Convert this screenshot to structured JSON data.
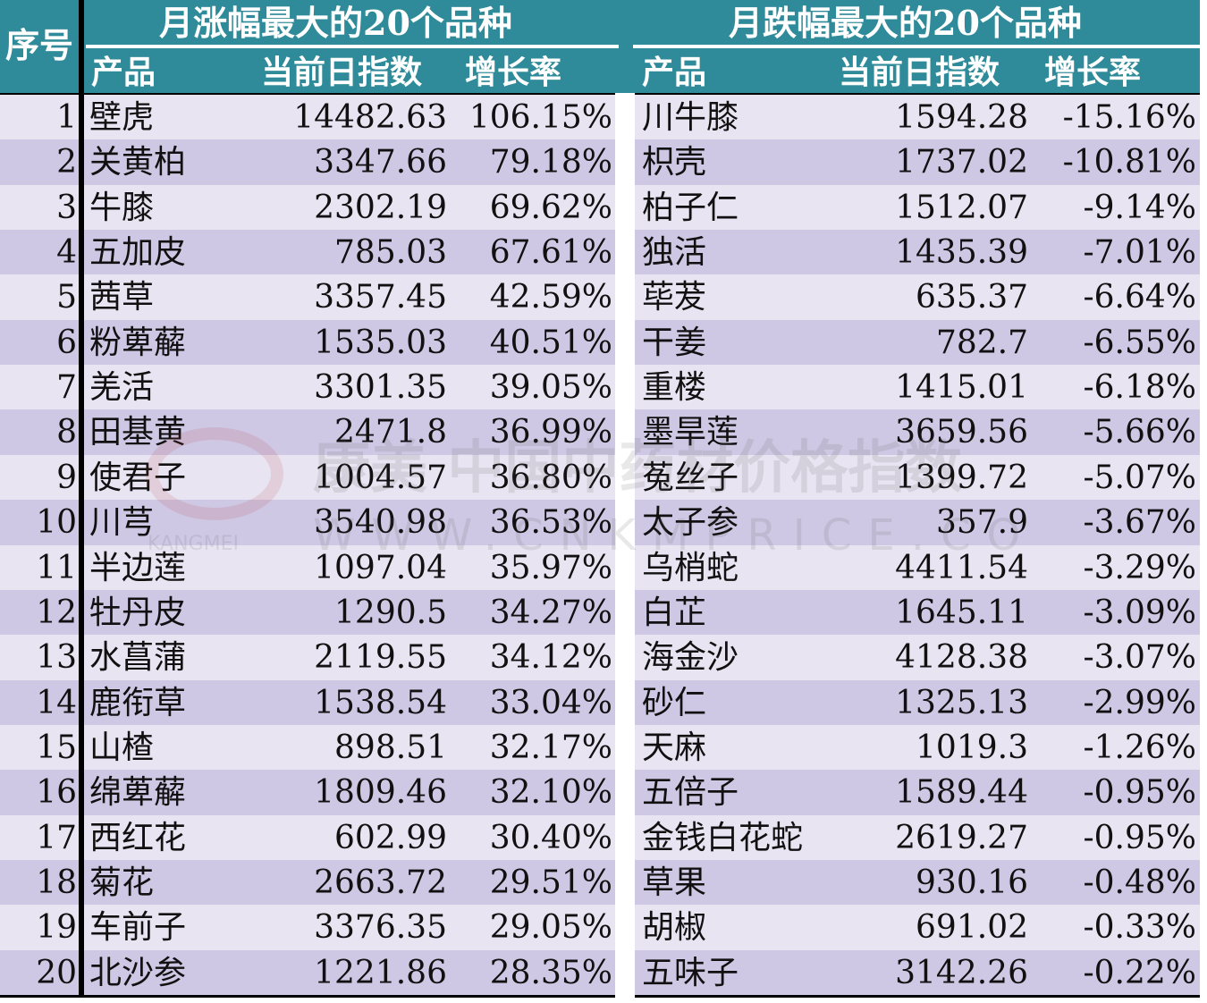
{
  "header": {
    "index_label": "序号",
    "left_title": "月涨幅最大的20个品种",
    "right_title": "月跌幅最大的20个品种",
    "left_columns": [
      "产品",
      "当前日指数",
      "增长率"
    ],
    "right_columns": [
      "产品",
      "当前日指数",
      "增长率"
    ]
  },
  "colors": {
    "header_bg": "#2f8b99",
    "row_light": "#e8e4f2",
    "row_dark": "#cfc8e4",
    "separator": "#000000"
  },
  "rows": [
    {
      "idx": "1",
      "left": {
        "name": "壁虎",
        "value": "14482.63",
        "rate": "106.15%"
      },
      "right": {
        "name": "川牛膝",
        "value": "1594.28",
        "rate": "-15.16%"
      }
    },
    {
      "idx": "2",
      "left": {
        "name": "关黄柏",
        "value": "3347.66",
        "rate": "79.18%"
      },
      "right": {
        "name": "枳壳",
        "value": "1737.02",
        "rate": "-10.81%"
      }
    },
    {
      "idx": "3",
      "left": {
        "name": "牛膝",
        "value": "2302.19",
        "rate": "69.62%"
      },
      "right": {
        "name": "柏子仁",
        "value": "1512.07",
        "rate": "-9.14%"
      }
    },
    {
      "idx": "4",
      "left": {
        "name": "五加皮",
        "value": "785.03",
        "rate": "67.61%"
      },
      "right": {
        "name": "独活",
        "value": "1435.39",
        "rate": "-7.01%"
      }
    },
    {
      "idx": "5",
      "left": {
        "name": "茜草",
        "value": "3357.45",
        "rate": "42.59%"
      },
      "right": {
        "name": "荜茇",
        "value": "635.37",
        "rate": "-6.64%"
      }
    },
    {
      "idx": "6",
      "left": {
        "name": "粉萆薢",
        "value": "1535.03",
        "rate": "40.51%"
      },
      "right": {
        "name": "干姜",
        "value": "782.7",
        "rate": "-6.55%"
      }
    },
    {
      "idx": "7",
      "left": {
        "name": "羌活",
        "value": "3301.35",
        "rate": "39.05%"
      },
      "right": {
        "name": "重楼",
        "value": "1415.01",
        "rate": "-6.18%"
      }
    },
    {
      "idx": "8",
      "left": {
        "name": "田基黄",
        "value": "2471.8",
        "rate": "36.99%"
      },
      "right": {
        "name": "墨旱莲",
        "value": "3659.56",
        "rate": "-5.66%"
      }
    },
    {
      "idx": "9",
      "left": {
        "name": "使君子",
        "value": "1004.57",
        "rate": "36.80%"
      },
      "right": {
        "name": "菟丝子",
        "value": "1399.72",
        "rate": "-5.07%"
      }
    },
    {
      "idx": "10",
      "left": {
        "name": "川芎",
        "value": "3540.98",
        "rate": "36.53%"
      },
      "right": {
        "name": "太子参",
        "value": "357.9",
        "rate": "-3.67%"
      }
    },
    {
      "idx": "11",
      "left": {
        "name": "半边莲",
        "value": "1097.04",
        "rate": "35.97%"
      },
      "right": {
        "name": "乌梢蛇",
        "value": "4411.54",
        "rate": "-3.29%"
      }
    },
    {
      "idx": "12",
      "left": {
        "name": "牡丹皮",
        "value": "1290.5",
        "rate": "34.27%"
      },
      "right": {
        "name": "白芷",
        "value": "1645.11",
        "rate": "-3.09%"
      }
    },
    {
      "idx": "13",
      "left": {
        "name": "水菖蒲",
        "value": "2119.55",
        "rate": "34.12%"
      },
      "right": {
        "name": "海金沙",
        "value": "4128.38",
        "rate": "-3.07%"
      }
    },
    {
      "idx": "14",
      "left": {
        "name": "鹿衔草",
        "value": "1538.54",
        "rate": "33.04%"
      },
      "right": {
        "name": "砂仁",
        "value": "1325.13",
        "rate": "-2.99%"
      }
    },
    {
      "idx": "15",
      "left": {
        "name": "山楂",
        "value": "898.51",
        "rate": "32.17%"
      },
      "right": {
        "name": "天麻",
        "value": "1019.3",
        "rate": "-1.26%"
      }
    },
    {
      "idx": "16",
      "left": {
        "name": "绵萆薢",
        "value": "1809.46",
        "rate": "32.10%"
      },
      "right": {
        "name": "五倍子",
        "value": "1589.44",
        "rate": "-0.95%"
      }
    },
    {
      "idx": "17",
      "left": {
        "name": "西红花",
        "value": "602.99",
        "rate": "30.40%"
      },
      "right": {
        "name": "金钱白花蛇",
        "value": "2619.27",
        "rate": "-0.95%"
      }
    },
    {
      "idx": "18",
      "left": {
        "name": "菊花",
        "value": "2663.72",
        "rate": "29.51%"
      },
      "right": {
        "name": "草果",
        "value": "930.16",
        "rate": "-0.48%"
      }
    },
    {
      "idx": "19",
      "left": {
        "name": "车前子",
        "value": "3376.35",
        "rate": "29.05%"
      },
      "right": {
        "name": "胡椒",
        "value": "691.02",
        "rate": "-0.33%"
      }
    },
    {
      "idx": "20",
      "left": {
        "name": "北沙参",
        "value": "1221.86",
        "rate": "28.35%"
      },
      "right": {
        "name": "五味子",
        "value": "3142.26",
        "rate": "-0.22%"
      }
    }
  ],
  "watermark": {
    "text_cn": "康美 中国中药材价格指数",
    "text_url": "WWW.CNKMPRICE.COM",
    "text_brand": "KANGMEI"
  }
}
